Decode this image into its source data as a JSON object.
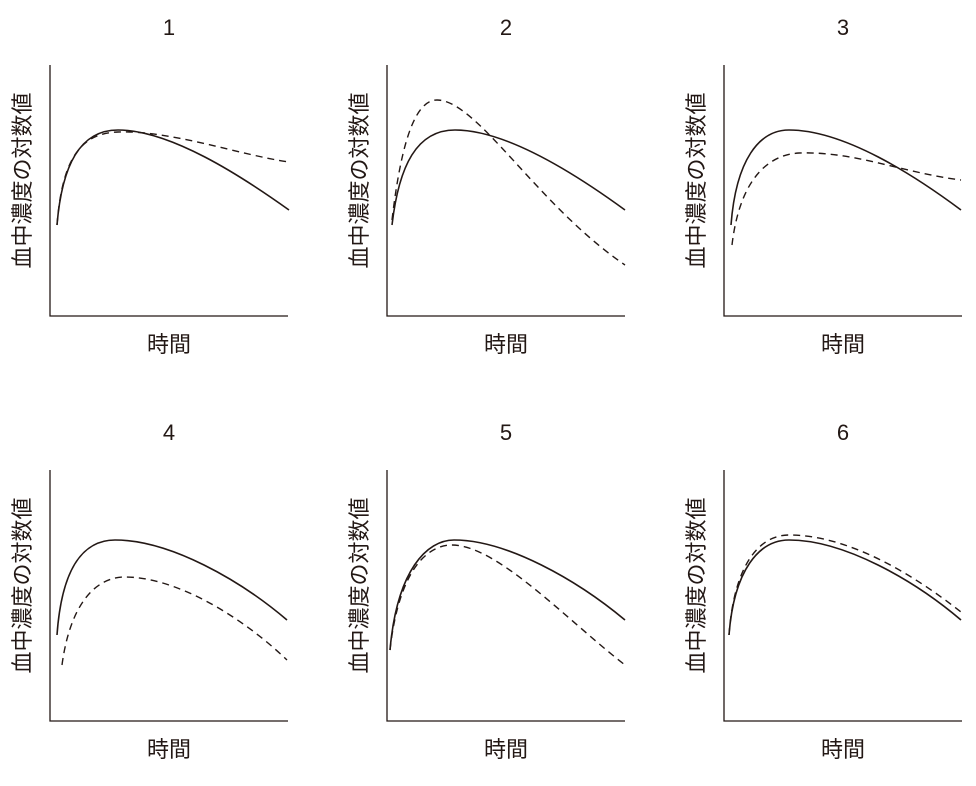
{
  "panels": [
    {
      "title": "1",
      "y_label": "血中濃度の対数値",
      "x_label": "時間"
    },
    {
      "title": "2",
      "y_label": "血中濃度の対数値",
      "x_label": "時間"
    },
    {
      "title": "3",
      "y_label": "血中濃度の対数値",
      "x_label": "時間"
    },
    {
      "title": "4",
      "y_label": "血中濃度の対数値",
      "x_label": "時間"
    },
    {
      "title": "5",
      "y_label": "血中濃度の対数値",
      "x_label": "時間"
    },
    {
      "title": "6",
      "y_label": "血中濃度の対数値",
      "x_label": "時間"
    }
  ]
}
